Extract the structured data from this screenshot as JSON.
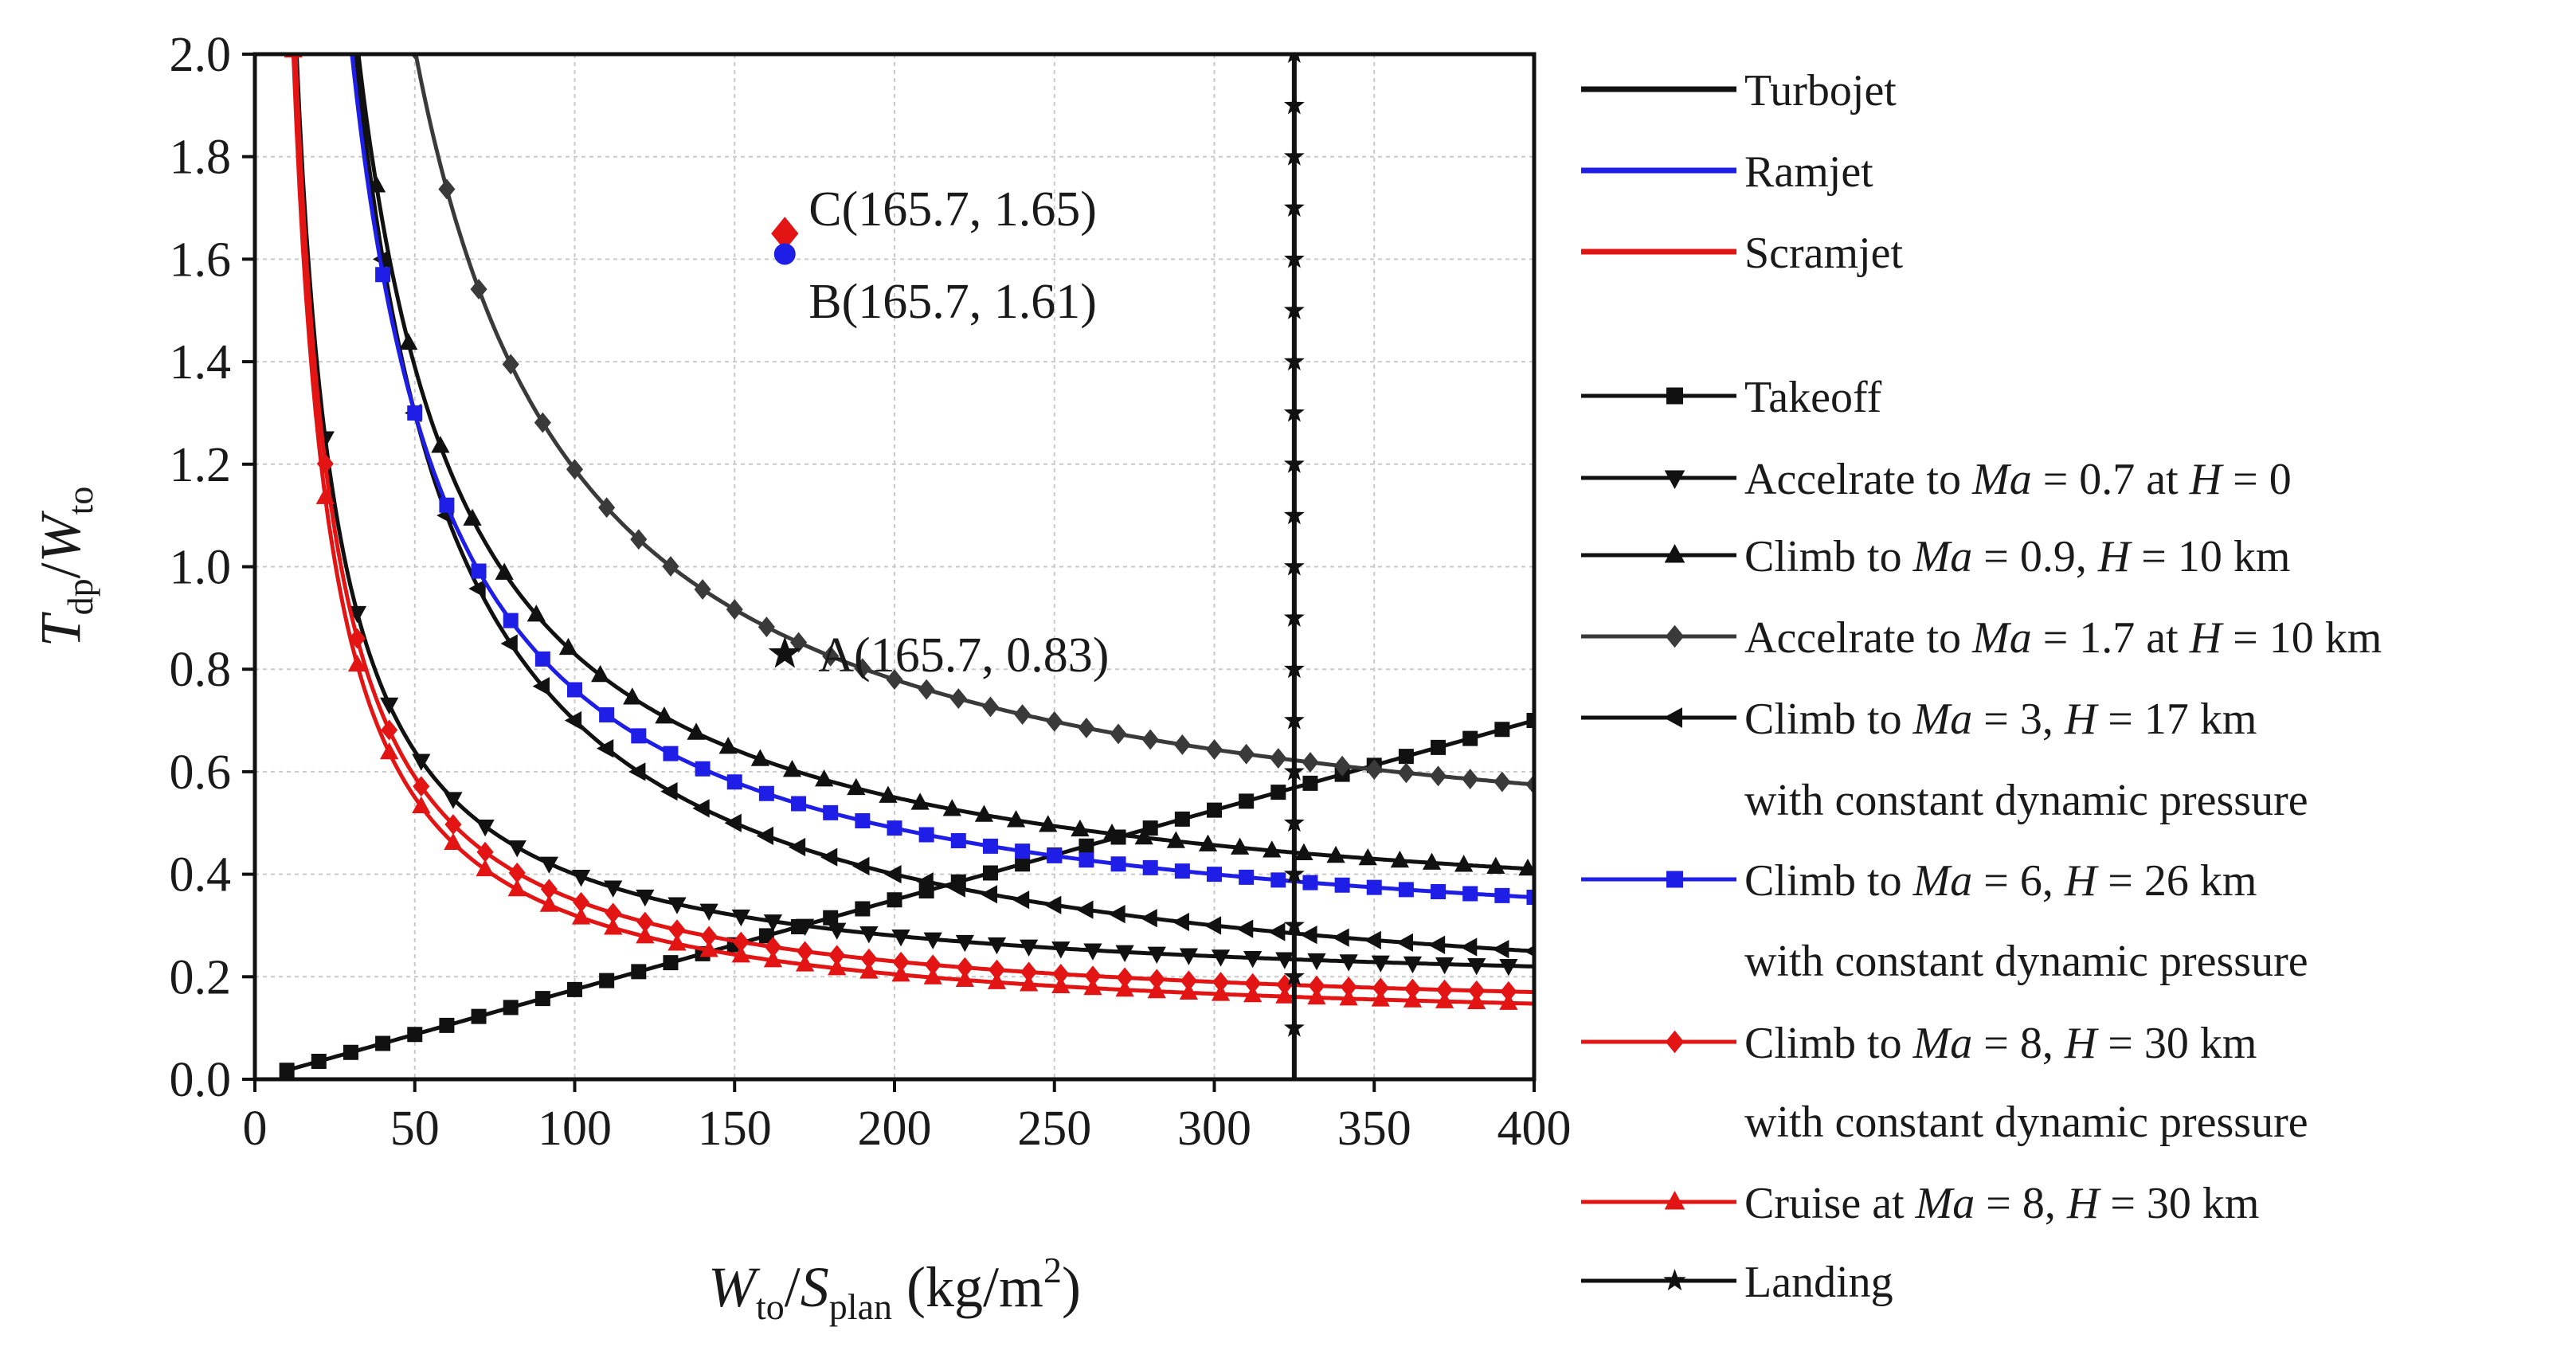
{
  "chart_data": {
    "type": "line",
    "title": "",
    "xlabel": {
      "main": "W",
      "main_sub": "to",
      "slash": "/",
      "second": "S",
      "second_sub": "plan",
      "unit": " (kg/m",
      "unit_sup": "2",
      "unit_close": ")"
    },
    "ylabel": {
      "main": "T",
      "main_sub": "dp",
      "slash": "/",
      "second": "W",
      "second_sub": "to"
    },
    "xlim": [
      0,
      400
    ],
    "ylim": [
      0,
      2.0
    ],
    "x_ticks": [
      "0",
      "50",
      "100",
      "150",
      "200",
      "250",
      "300",
      "350",
      "400"
    ],
    "y_ticks": [
      "0.0",
      "0.2",
      "0.4",
      "0.6",
      "0.8",
      "1.0",
      "1.2",
      "1.4",
      "1.6",
      "1.8",
      "2.0"
    ],
    "grid": true,
    "legend_position": "right",
    "colors": {
      "turbojet": "#111111",
      "ramjet": "#1e1ee6",
      "scramjet": "#e31414",
      "accel17": "#3a3a3a"
    },
    "engine_legend": [
      {
        "label": "Turbojet",
        "color": "#111111"
      },
      {
        "label": "Ramjet",
        "color": "#1e1ee6"
      },
      {
        "label": "Scramjet",
        "color": "#e31414"
      }
    ],
    "series": [
      {
        "name": "Takeoff",
        "color": "#111111",
        "marker": "square",
        "kind": "linear",
        "slope": 0.00175,
        "x_start": 10,
        "x_end": 400,
        "step": 10
      },
      {
        "name": "Accelrate to Ma = 0.7 at H = 0",
        "color": "#111111",
        "marker": "triangle-down",
        "kind": "inverse",
        "a": 24,
        "b": 0.16,
        "x_start": 12,
        "x_end": 400,
        "step": 10
      },
      {
        "name": "Climb to Ma = 0.9, H = 10 km",
        "color": "#111111",
        "marker": "triangle-up",
        "kind": "inverse",
        "a": 56,
        "b": 0.27,
        "x_start": 28,
        "x_end": 400,
        "step": 10
      },
      {
        "name": "Accelrate to Ma = 1.7 at H = 10 km",
        "color": "#3a3a3a",
        "marker": "diamond",
        "kind": "inverse",
        "a": 82,
        "b": 0.37,
        "x_start": 50,
        "x_end": 400,
        "step": 10
      },
      {
        "name": "Climb to Ma = 3, H = 17 km with constant dynamic pressure",
        "color": "#111111",
        "marker": "triangle-left",
        "kind": "inverse",
        "a": 60,
        "b": 0.1,
        "x_start": 30,
        "x_end": 400,
        "step": 10
      },
      {
        "name": "Climb to Ma = 6, H = 26 km with constant dynamic pressure",
        "color": "#1e1ee6",
        "marker": "square",
        "kind": "inverse",
        "a": 54,
        "b": 0.22,
        "x_start": 30,
        "x_end": 400,
        "step": 10
      },
      {
        "name": "Climb to Ma = 8, H = 30 km with constant dynamic pressure",
        "color": "#e31414",
        "marker": "diamond",
        "kind": "inverse",
        "a": 24,
        "b": 0.11,
        "x_start": 12,
        "x_end": 400,
        "step": 10
      },
      {
        "name": "Cruise at Ma = 8, H = 30 km",
        "color": "#e31414",
        "marker": "triangle-up",
        "kind": "inverse",
        "a": 23,
        "b": 0.09,
        "x_start": 12,
        "x_end": 400,
        "step": 10
      },
      {
        "name": "Landing",
        "color": "#111111",
        "marker": "star",
        "kind": "vertical",
        "x": 325,
        "y_start": 0.1,
        "y_end": 2.0,
        "step": 0.1
      }
    ],
    "legend": [
      {
        "parts": [
          {
            "t": "Takeoff",
            "i": false
          }
        ],
        "color": "#111111",
        "marker": "square"
      },
      {
        "parts": [
          {
            "t": "Accelrate to ",
            "i": false
          },
          {
            "t": "Ma",
            "i": true
          },
          {
            "t": " = 0.7 at ",
            "i": false
          },
          {
            "t": "H",
            "i": true
          },
          {
            "t": " = 0",
            "i": false
          }
        ],
        "color": "#111111",
        "marker": "triangle-down"
      },
      {
        "parts": [
          {
            "t": "Climb to ",
            "i": false
          },
          {
            "t": "Ma",
            "i": true
          },
          {
            "t": " = 0.9, ",
            "i": false
          },
          {
            "t": "H",
            "i": true
          },
          {
            "t": " = 10 km",
            "i": false
          }
        ],
        "color": "#111111",
        "marker": "triangle-up"
      },
      {
        "parts": [
          {
            "t": "Accelrate to ",
            "i": false
          },
          {
            "t": "Ma",
            "i": true
          },
          {
            "t": " = 1.7 at ",
            "i": false
          },
          {
            "t": "H",
            "i": true
          },
          {
            "t": " = 10 km",
            "i": false
          }
        ],
        "color": "#3a3a3a",
        "marker": "diamond"
      },
      {
        "parts": [
          {
            "t": "Climb to ",
            "i": false
          },
          {
            "t": "Ma",
            "i": true
          },
          {
            "t": " = 3, ",
            "i": false
          },
          {
            "t": "H",
            "i": true
          },
          {
            "t": " = 17 km",
            "i": false
          }
        ],
        "line2": "with constant dynamic pressure",
        "color": "#111111",
        "marker": "triangle-left"
      },
      {
        "parts": [
          {
            "t": "Climb to ",
            "i": false
          },
          {
            "t": "Ma",
            "i": true
          },
          {
            "t": " = 6, ",
            "i": false
          },
          {
            "t": "H",
            "i": true
          },
          {
            "t": " = 26 km",
            "i": false
          }
        ],
        "line2": "with constant dynamic pressure",
        "color": "#1e1ee6",
        "marker": "square"
      },
      {
        "parts": [
          {
            "t": "Climb to ",
            "i": false
          },
          {
            "t": "Ma",
            "i": true
          },
          {
            "t": " = 8, ",
            "i": false
          },
          {
            "t": "H",
            "i": true
          },
          {
            "t": " = 30 km",
            "i": false
          }
        ],
        "line2": "with constant dynamic pressure",
        "color": "#e31414",
        "marker": "diamond"
      },
      {
        "parts": [
          {
            "t": "Cruise at ",
            "i": false
          },
          {
            "t": "Ma",
            "i": true
          },
          {
            "t": " = 8, ",
            "i": false
          },
          {
            "t": "H",
            "i": true
          },
          {
            "t": " = 30 km",
            "i": false
          }
        ],
        "color": "#e31414",
        "marker": "triangle-up"
      },
      {
        "parts": [
          {
            "t": "Landing",
            "i": false
          }
        ],
        "color": "#111111",
        "marker": "star"
      }
    ],
    "annotations": [
      {
        "label": "C(165.7, 1.65)",
        "x": 165.7,
        "y": 1.65,
        "marker": "diamond",
        "color": "#e31414",
        "text_side": "above"
      },
      {
        "label": "B(165.7, 1.61)",
        "x": 165.7,
        "y": 1.61,
        "marker": "circle",
        "color": "#1e1ee6",
        "text_side": "below"
      },
      {
        "label": "A(165.7, 0.83)",
        "x": 165.7,
        "y": 0.83,
        "marker": "star",
        "color": "#111111",
        "text_side": "right"
      }
    ]
  }
}
